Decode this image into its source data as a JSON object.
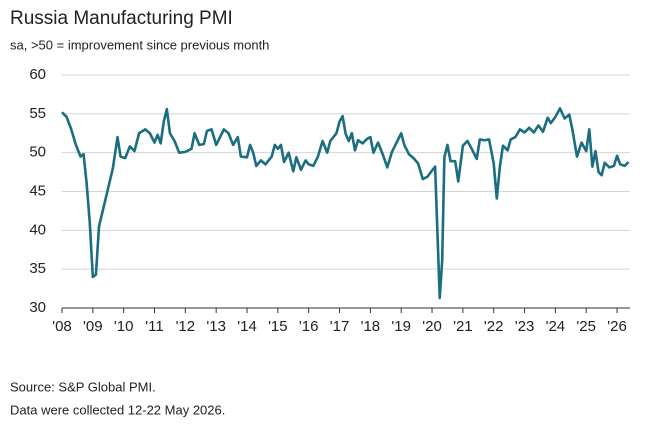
{
  "chart_data": {
    "type": "line",
    "title": "Russia Manufacturing PMI",
    "subtitle": "sa, >50 = improvement since previous month",
    "notes": [
      "Source: S&P Global PMI.",
      "Data were collected 12-22 May 2026."
    ],
    "color": "#1a6e80",
    "grid": true,
    "xlim": [
      2008,
      2026.42
    ],
    "ylim": [
      30,
      60
    ],
    "yticks": [
      30,
      35,
      40,
      45,
      50,
      55,
      60
    ],
    "xticks": [
      {
        "value": 2008,
        "label": "'08"
      },
      {
        "value": 2009,
        "label": "'09"
      },
      {
        "value": 2010,
        "label": "'10"
      },
      {
        "value": 2011,
        "label": "'11"
      },
      {
        "value": 2012,
        "label": "'12"
      },
      {
        "value": 2013,
        "label": "'13"
      },
      {
        "value": 2014,
        "label": "'14"
      },
      {
        "value": 2015,
        "label": "'15"
      },
      {
        "value": 2016,
        "label": "'16"
      },
      {
        "value": 2017,
        "label": "'17"
      },
      {
        "value": 2018,
        "label": "'18"
      },
      {
        "value": 2019,
        "label": "'19"
      },
      {
        "value": 2020,
        "label": "'20"
      },
      {
        "value": 2021,
        "label": "'21"
      },
      {
        "value": 2022,
        "label": "'22"
      },
      {
        "value": 2023,
        "label": "'23"
      },
      {
        "value": 2024,
        "label": "'24"
      },
      {
        "value": 2025,
        "label": "'25"
      },
      {
        "value": 2026,
        "label": "'26"
      }
    ],
    "x": [
      2008.0,
      2008.15,
      2008.3,
      2008.45,
      2008.6,
      2008.7,
      2008.8,
      2008.9,
      2009.0,
      2009.1,
      2009.2,
      2009.35,
      2009.5,
      2009.65,
      2009.8,
      2009.9,
      2010.05,
      2010.2,
      2010.35,
      2010.5,
      2010.7,
      2010.85,
      2011.0,
      2011.1,
      2011.2,
      2011.3,
      2011.4,
      2011.5,
      2011.65,
      2011.8,
      2012.0,
      2012.2,
      2012.3,
      2012.45,
      2012.6,
      2012.7,
      2012.85,
      2013.0,
      2013.1,
      2013.25,
      2013.4,
      2013.55,
      2013.7,
      2013.8,
      2014.0,
      2014.1,
      2014.2,
      2014.3,
      2014.45,
      2014.6,
      2014.8,
      2014.9,
      2015.0,
      2015.1,
      2015.2,
      2015.35,
      2015.5,
      2015.6,
      2015.75,
      2015.9,
      2016.0,
      2016.15,
      2016.3,
      2016.45,
      2016.6,
      2016.7,
      2016.9,
      2017.0,
      2017.1,
      2017.2,
      2017.3,
      2017.4,
      2017.5,
      2017.6,
      2017.75,
      2017.9,
      2018.0,
      2018.1,
      2018.25,
      2018.4,
      2018.55,
      2018.7,
      2018.85,
      2019.0,
      2019.1,
      2019.25,
      2019.4,
      2019.55,
      2019.7,
      2019.85,
      2020.0,
      2020.1,
      2020.25,
      2020.33,
      2020.4,
      2020.5,
      2020.6,
      2020.75,
      2020.85,
      2021.0,
      2021.15,
      2021.3,
      2021.45,
      2021.55,
      2021.7,
      2021.85,
      2022.0,
      2022.1,
      2022.2,
      2022.3,
      2022.45,
      2022.55,
      2022.7,
      2022.85,
      2023.0,
      2023.15,
      2023.3,
      2023.45,
      2023.6,
      2023.75,
      2023.85,
      2024.0,
      2024.15,
      2024.3,
      2024.45,
      2024.55,
      2024.7,
      2024.85,
      2025.0,
      2025.1,
      2025.2,
      2025.3,
      2025.4,
      2025.5,
      2025.6,
      2025.75,
      2025.9,
      2026.0,
      2026.1,
      2026.25,
      2026.37
    ],
    "values": [
      55.2,
      54.6,
      53,
      51,
      49.5,
      49.8,
      46,
      41,
      34,
      34.3,
      40.5,
      43,
      45.5,
      48,
      52,
      49.5,
      49.3,
      50.8,
      50.2,
      52.5,
      53,
      52.5,
      51.3,
      52.3,
      51.2,
      54,
      55.6,
      52.5,
      51.5,
      50,
      50.1,
      50.5,
      52.5,
      51,
      51.1,
      52.8,
      53,
      51,
      51.8,
      53,
      52.5,
      51,
      52,
      49.5,
      49.4,
      51,
      50,
      48.3,
      49,
      48.5,
      49.5,
      51,
      50.5,
      51,
      48.8,
      50,
      47.6,
      49.4,
      47.8,
      49,
      48.5,
      48.3,
      49.5,
      51.5,
      50,
      51.5,
      52.5,
      54,
      54.7,
      52.4,
      51.5,
      52.5,
      50.3,
      51.6,
      51.2,
      51.8,
      52,
      50,
      51.3,
      49.8,
      48.1,
      50.1,
      51.3,
      52.5,
      51,
      49.8,
      49.3,
      48.6,
      46.6,
      46.9,
      47.7,
      48.2,
      31.3,
      36.2,
      49.4,
      51,
      48.9,
      48.9,
      46.3,
      50.9,
      51.5,
      50.4,
      49.2,
      51.7,
      51.6,
      51.7,
      48.6,
      44.1,
      48.2,
      50.9,
      50.3,
      51.7,
      52,
      53,
      52.6,
      53.2,
      52.6,
      53.5,
      52.7,
      54.5,
      53.8,
      54.6,
      55.7,
      54.4,
      54.9,
      53,
      49.5,
      51.3,
      50.2,
      53,
      48.2,
      50.2,
      47.5,
      47.1,
      48.7,
      48.1,
      48.3,
      49.6,
      48.5,
      48.3,
      48.8
    ]
  }
}
